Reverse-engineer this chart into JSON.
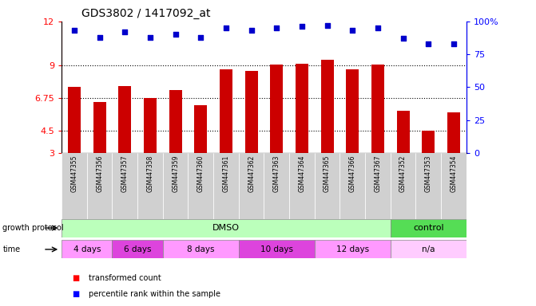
{
  "title": "GDS3802 / 1417092_at",
  "samples": [
    "GSM447355",
    "GSM447356",
    "GSM447357",
    "GSM447358",
    "GSM447359",
    "GSM447360",
    "GSM447361",
    "GSM447362",
    "GSM447363",
    "GSM447364",
    "GSM447365",
    "GSM447366",
    "GSM447367",
    "GSM447352",
    "GSM447353",
    "GSM447354"
  ],
  "transformed_count": [
    7.5,
    6.5,
    7.6,
    6.75,
    7.3,
    6.25,
    8.75,
    8.6,
    9.05,
    9.1,
    9.35,
    8.75,
    9.05,
    5.9,
    4.5,
    5.8
  ],
  "percentile_rank": [
    93,
    88,
    92,
    88,
    90,
    88,
    95,
    93,
    95,
    96,
    97,
    93,
    95,
    87,
    83,
    83
  ],
  "ylim_left": [
    3,
    12
  ],
  "ylim_right": [
    0,
    100
  ],
  "yticks_left": [
    3,
    4.5,
    6.75,
    9,
    12
  ],
  "ytick_labels_left": [
    "3",
    "4.5",
    "6.75",
    "9",
    "12"
  ],
  "yticks_right": [
    0,
    25,
    50,
    75,
    100
  ],
  "ytick_labels_right": [
    "0",
    "25",
    "50",
    "75",
    "100%"
  ],
  "hlines": [
    4.5,
    6.75,
    9.0
  ],
  "bar_color": "#cc0000",
  "dot_color": "#0000cc",
  "bg_color": "#ffffff",
  "title_fontsize": 10,
  "growth_protocol_label": "growth protocol",
  "time_label": "time",
  "n_samples": 16,
  "dmso_count": 13,
  "control_count": 3,
  "dmso_color": "#bbffbb",
  "control_color": "#55dd55",
  "time_groups": [
    {
      "label": "4 days",
      "color": "#ff99ff",
      "start": 0,
      "end": 2
    },
    {
      "label": "6 days",
      "color": "#dd44dd",
      "start": 2,
      "end": 4
    },
    {
      "label": "8 days",
      "color": "#ff99ff",
      "start": 4,
      "end": 7
    },
    {
      "label": "10 days",
      "color": "#dd44dd",
      "start": 7,
      "end": 10
    },
    {
      "label": "12 days",
      "color": "#ff99ff",
      "start": 10,
      "end": 13
    },
    {
      "label": "n/a",
      "color": "#ffccff",
      "start": 13,
      "end": 16
    }
  ]
}
